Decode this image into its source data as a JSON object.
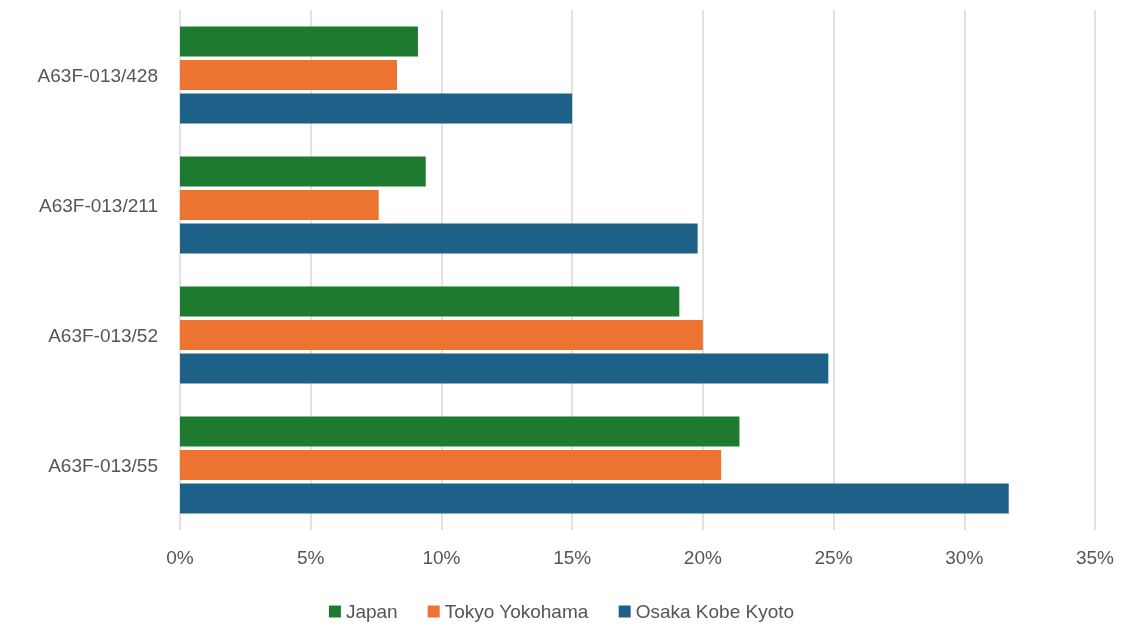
{
  "chart_data": {
    "type": "bar",
    "orientation": "horizontal",
    "categories": [
      "A63F-013/428",
      "A63F-013/211",
      "A63F-013/52",
      "A63F-013/55"
    ],
    "series": [
      {
        "name": "Japan",
        "color": "#1e7a2e",
        "values": [
          9.1,
          9.4,
          19.1,
          21.4
        ]
      },
      {
        "name": "Tokyo Yokohama",
        "color": "#ed7430",
        "values": [
          8.3,
          7.6,
          20.0,
          20.7
        ]
      },
      {
        "name": "Osaka Kobe Kyoto",
        "color": "#1d6189",
        "values": [
          15.0,
          19.8,
          24.8,
          31.7
        ]
      }
    ],
    "xlim": [
      0,
      35
    ],
    "xticks": [
      {
        "value": 0,
        "label": "0%"
      },
      {
        "value": 5,
        "label": "5%"
      },
      {
        "value": 10,
        "label": "10%"
      },
      {
        "value": 15,
        "label": "15%"
      },
      {
        "value": 20,
        "label": "20%"
      },
      {
        "value": 25,
        "label": "25%"
      },
      {
        "value": 30,
        "label": "30%"
      },
      {
        "value": 35,
        "label": "35%"
      }
    ],
    "grid": "x",
    "legend": "bottom"
  }
}
